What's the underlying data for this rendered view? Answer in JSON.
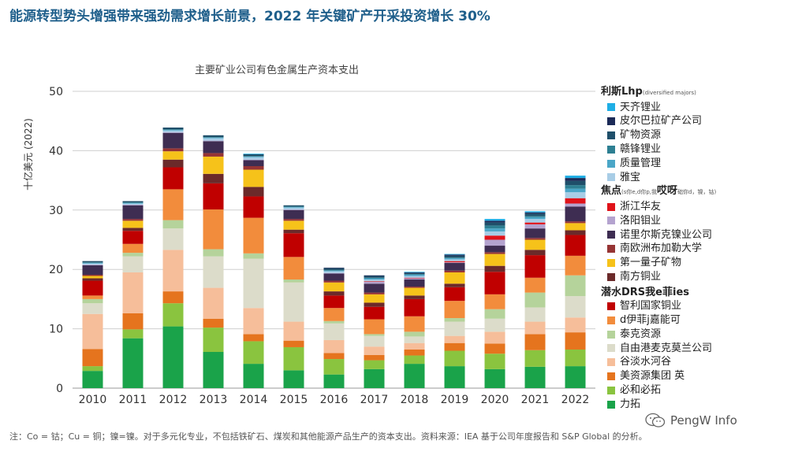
{
  "headline": "能源转型势头增强带来强劲需求增长前景，2022 年关键矿产开采投资增长 30%",
  "footnote": "注：Co = 钴；Cu = 铜；镍=镍。对于多元化专业，不包括铁矿石、煤炭和其他能源产品生产的资本支出。资料来源：IEA 基于公司年度报告和 S&P Global 的分析。",
  "watermark": "PengW Info",
  "legend": {
    "group_diversified": {
      "title": "利斯Lhp",
      "note": "(diversified majors)"
    },
    "group_lithium_cobalt": {
      "title": "焦点",
      "note": "(s你e,d你p,我",
      "suffix": "哎呀",
      "tail": "础你d，镍，钴)"
    },
    "group_copper": {
      "title": "潜水DRS",
      "title2": "我e菲ies"
    }
  },
  "chart_data": {
    "type": "bar",
    "stacked": true,
    "title": "主要矿业公司有色金属生产资本支出",
    "xlabel": "",
    "ylabel": "十亿美元 (2022)",
    "ylim": [
      0,
      50
    ],
    "yticks": [
      0,
      10,
      20,
      30,
      40,
      50
    ],
    "categories": [
      "2010",
      "2011",
      "2012",
      "2013",
      "2014",
      "2015",
      "2016",
      "2017",
      "2018",
      "2019",
      "2020",
      "2021",
      "2022"
    ],
    "series": [
      {
        "name": "力拓",
        "color": "#1aa34a",
        "group": "copper",
        "values": [
          2.9,
          8.4,
          10.4,
          6.1,
          4.1,
          3.0,
          2.3,
          3.2,
          4.1,
          3.7,
          3.2,
          3.6,
          3.7
        ]
      },
      {
        "name": "必和必拓",
        "color": "#8ac43f",
        "group": "copper",
        "values": [
          0.8,
          1.5,
          3.9,
          4.1,
          3.8,
          3.9,
          2.6,
          1.5,
          1.4,
          2.6,
          2.6,
          2.8,
          2.8
        ]
      },
      {
        "name": "美资源集团 英",
        "color": "#e5741e",
        "group": "copper",
        "values": [
          2.9,
          2.7,
          2.0,
          1.5,
          1.2,
          1.1,
          1.0,
          0.9,
          1.0,
          1.3,
          1.7,
          2.7,
          2.9
        ]
      },
      {
        "name": "谷淡水河谷",
        "color": "#f6be9a",
        "group": "copper",
        "values": [
          5.9,
          6.9,
          7.0,
          5.2,
          4.4,
          3.2,
          2.2,
          1.4,
          1.1,
          1.2,
          2.0,
          2.1,
          2.5
        ]
      },
      {
        "name": "自由港麦克莫兰公司",
        "color": "#dcdcca",
        "group": "copper",
        "values": [
          1.8,
          2.7,
          3.6,
          5.3,
          8.3,
          6.6,
          2.8,
          1.8,
          1.1,
          2.4,
          2.2,
          2.4,
          3.6
        ]
      },
      {
        "name": "泰克资源",
        "color": "#b5d39b",
        "group": "copper",
        "values": [
          0.7,
          0.6,
          1.4,
          1.2,
          0.9,
          0.5,
          0.4,
          0.3,
          0.8,
          0.6,
          1.6,
          2.5,
          3.5
        ]
      },
      {
        "name": "d伊菲j嘉能可",
        "color": "#f28c3c",
        "group": "copper",
        "values": [
          0.6,
          1.5,
          5.2,
          6.7,
          6.0,
          3.8,
          2.2,
          2.5,
          2.6,
          2.9,
          2.5,
          2.5,
          3.3
        ]
      },
      {
        "name": "智利国家铜业",
        "color": "#c00000",
        "group": "copper",
        "values": [
          2.5,
          2.2,
          3.7,
          4.4,
          3.6,
          4.0,
          2.1,
          2.1,
          2.9,
          2.3,
          3.8,
          3.8,
          3.5
        ]
      },
      {
        "name": "南方铜业",
        "color": "#6b2a2a",
        "group": "lithium_cobalt",
        "values": [
          0.4,
          0.5,
          1.3,
          1.6,
          1.6,
          0.6,
          0.7,
          0.7,
          0.6,
          0.6,
          1.0,
          0.9,
          0.8
        ]
      },
      {
        "name": "第一量子矿物",
        "color": "#f6c21a",
        "group": "lithium_cobalt",
        "values": [
          0.4,
          1.2,
          1.4,
          2.9,
          2.9,
          1.5,
          1.5,
          1.4,
          1.3,
          1.9,
          2.0,
          1.7,
          1.2
        ]
      },
      {
        "name": "南欧洲布加勒大学",
        "color": "#963434",
        "group": "lithium_cobalt",
        "values": [
          0.2,
          0.3,
          0.5,
          0.6,
          0.6,
          0.3,
          0.3,
          0.3,
          0.2,
          0.3,
          0.3,
          0.3,
          0.3
        ]
      },
      {
        "name": "诺里尔斯克镍业公司",
        "color": "#3e2d52",
        "group": "lithium_cobalt",
        "values": [
          1.6,
          2.3,
          2.6,
          2.0,
          1.0,
          1.5,
          1.2,
          1.5,
          1.2,
          1.3,
          1.1,
          1.6,
          2.5
        ]
      },
      {
        "name": "洛阳钼业",
        "color": "#b4a3cf",
        "group": "lithium_cobalt",
        "values": [
          0.1,
          0.1,
          0.1,
          0.1,
          0.1,
          0.1,
          0.1,
          0.3,
          0.2,
          0.1,
          1.0,
          0.7,
          0.5
        ]
      },
      {
        "name": "浙江华友",
        "color": "#e0131a",
        "group": "lithium_cobalt",
        "values": [
          0.0,
          0.0,
          0.0,
          0.0,
          0.0,
          0.0,
          0.0,
          0.1,
          0.1,
          0.2,
          0.7,
          0.3,
          0.9
        ]
      },
      {
        "name": "雅宝",
        "color": "#a8cde6",
        "group": "diversified",
        "values": [
          0.2,
          0.2,
          0.3,
          0.4,
          0.4,
          0.3,
          0.3,
          0.3,
          0.3,
          0.3,
          0.7,
          0.6,
          1.0
        ]
      },
      {
        "name": "质量管理",
        "color": "#4aa6c7",
        "group": "diversified",
        "values": [
          0.1,
          0.1,
          0.1,
          0.1,
          0.1,
          0.1,
          0.1,
          0.2,
          0.2,
          0.2,
          0.5,
          0.3,
          0.6
        ]
      },
      {
        "name": "赣锋锂业",
        "color": "#2d7f92",
        "group": "diversified",
        "values": [
          0.1,
          0.1,
          0.1,
          0.1,
          0.1,
          0.1,
          0.1,
          0.1,
          0.1,
          0.1,
          0.5,
          0.2,
          0.6
        ]
      },
      {
        "name": "矿物资源",
        "color": "#1f4f6a",
        "group": "diversified",
        "values": [
          0.2,
          0.2,
          0.3,
          0.3,
          0.3,
          0.2,
          0.3,
          0.3,
          0.2,
          0.3,
          0.5,
          0.4,
          0.7
        ]
      },
      {
        "name": "皮尔巴拉矿产公司",
        "color": "#1b2a57",
        "group": "diversified",
        "values": [
          0.0,
          0.0,
          0.0,
          0.0,
          0.0,
          0.0,
          0.1,
          0.1,
          0.1,
          0.2,
          0.3,
          0.2,
          0.5
        ]
      },
      {
        "name": "天齐锂业",
        "color": "#1eaee5",
        "group": "diversified",
        "values": [
          0.0,
          0.0,
          0.0,
          0.0,
          0.1,
          0.0,
          0.0,
          0.0,
          0.1,
          0.1,
          0.3,
          0.2,
          0.4
        ]
      }
    ]
  }
}
